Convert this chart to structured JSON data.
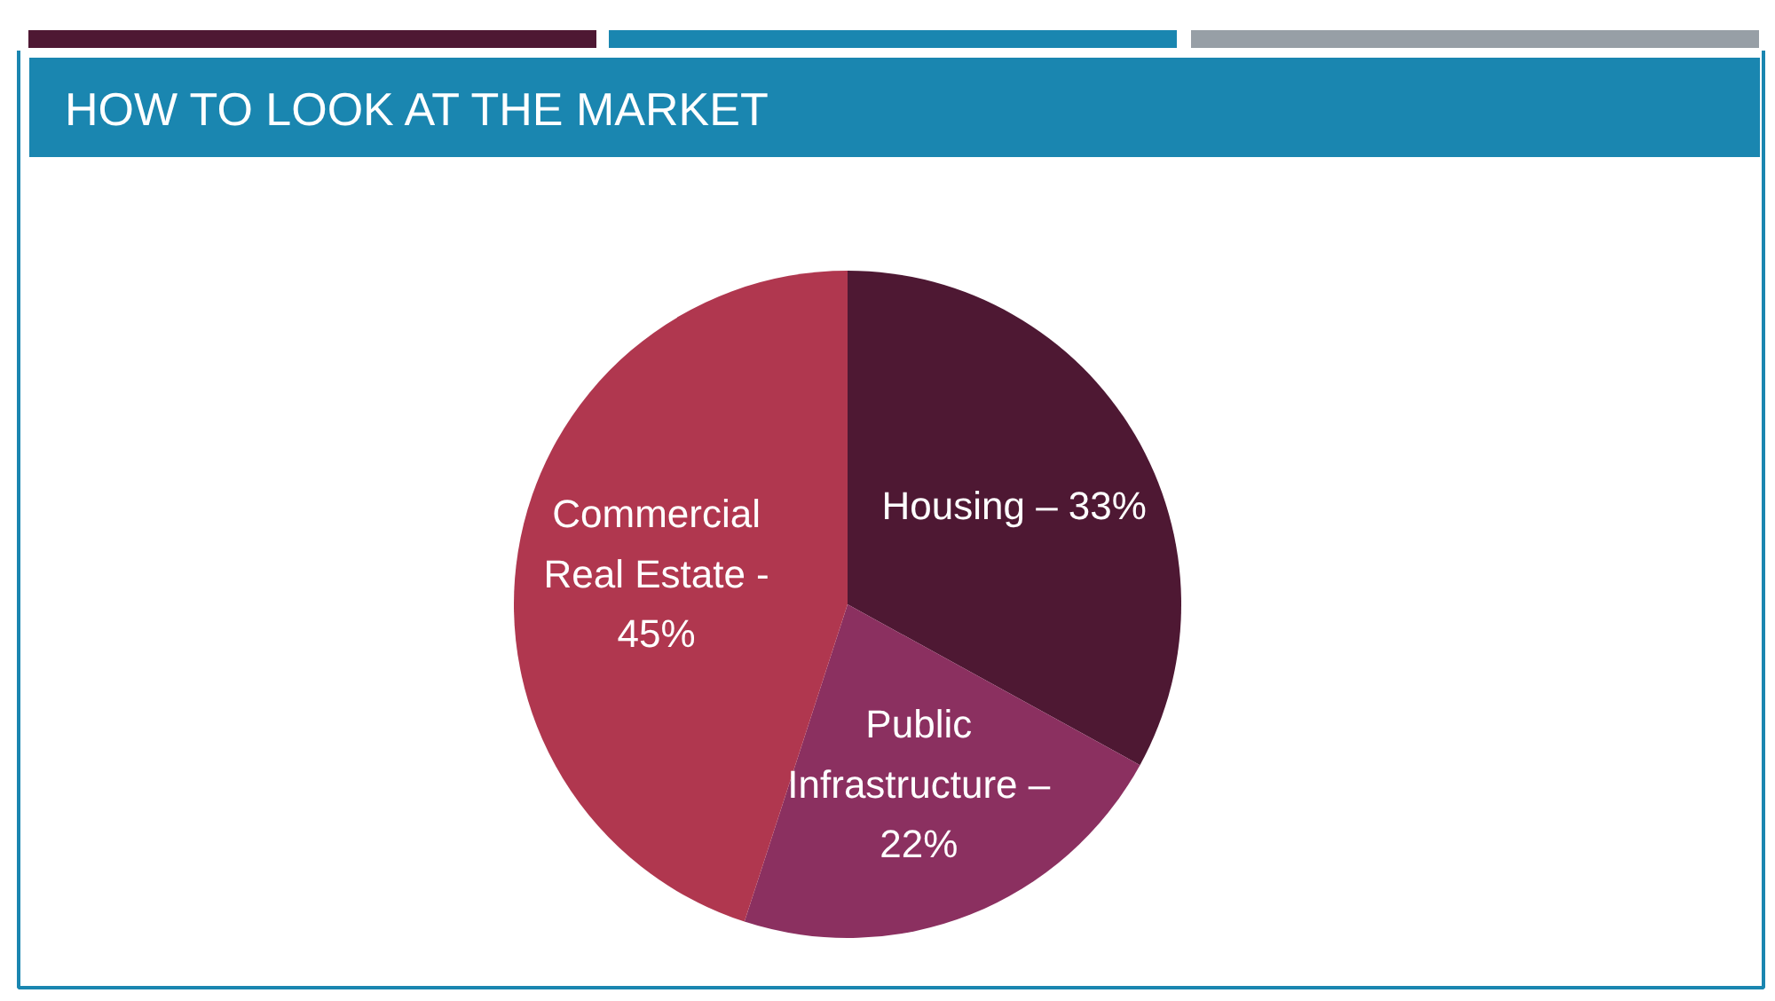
{
  "chart_data": {
    "type": "pie",
    "title": "HOW TO LOOK AT THE MARKET",
    "categories": [
      "Housing – 33%",
      "Public\nInfrastructure –\n22%",
      "Commercial\nReal Estate -\n45%"
    ],
    "values": [
      33,
      22,
      45
    ],
    "colors": [
      "#4e1833",
      "#8b3060",
      "#b0374f"
    ]
  }
}
